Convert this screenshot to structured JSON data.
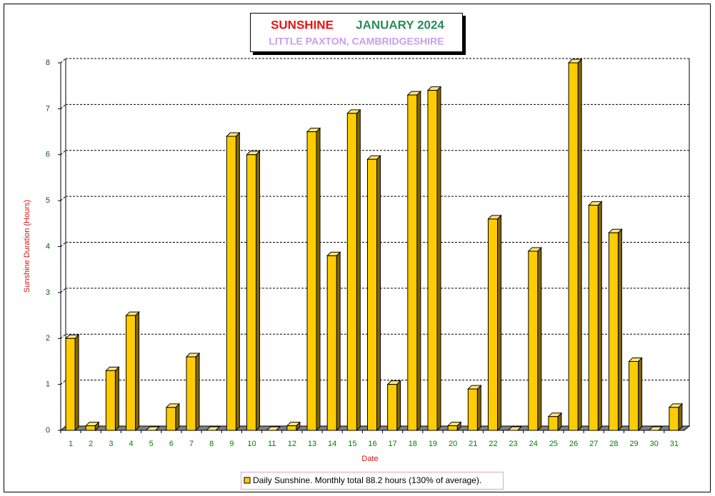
{
  "chart_data": {
    "type": "bar3d",
    "title": "SUNSHINE",
    "period": "JANUARY 2024",
    "subtitle": "LITTLE PAXTON, CAMBRIDGESHIRE",
    "x_label": "Date",
    "y_label": "Sunshine Duration (Hours)",
    "categories": [
      "1",
      "2",
      "3",
      "4",
      "5",
      "6",
      "7",
      "8",
      "9",
      "10",
      "11",
      "12",
      "13",
      "14",
      "15",
      "16",
      "17",
      "18",
      "19",
      "20",
      "21",
      "22",
      "23",
      "24",
      "25",
      "26",
      "27",
      "28",
      "29",
      "30",
      "31"
    ],
    "series": [
      {
        "name": "Daily Sunshine. Monthly total 88.2 hours (130% of average).",
        "color": "#ffcc00",
        "values": [
          2.0,
          0.1,
          1.3,
          2.5,
          0,
          0.5,
          1.6,
          0,
          6.4,
          6.0,
          0,
          0.1,
          6.5,
          3.8,
          6.9,
          5.9,
          1.0,
          7.3,
          7.4,
          0.1,
          0.9,
          4.6,
          0,
          3.9,
          0.3,
          8.0,
          4.9,
          4.3,
          1.5,
          0,
          0.5
        ]
      }
    ],
    "ylim": [
      0,
      8
    ],
    "yticks": [
      0,
      1,
      2,
      3,
      4,
      5,
      6,
      7,
      8
    ],
    "grid": true
  }
}
